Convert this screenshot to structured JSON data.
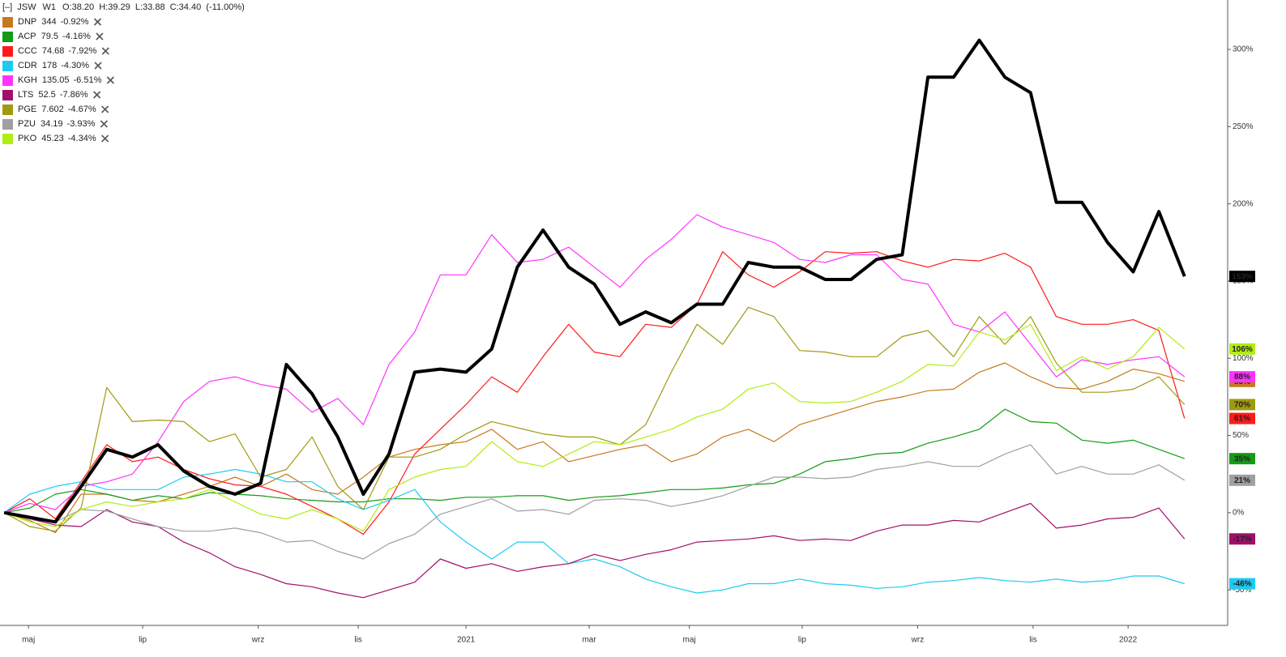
{
  "chart_data": {
    "type": "line",
    "header": {
      "toggle": "[–]",
      "interval": "W1",
      "ohlc": "O:38.20  H:39.29  L:33.88  C:34.40  (-11.00%)"
    },
    "xlim": [
      -0.16,
      47.68
    ],
    "xticks": [
      {
        "value": 0.95,
        "label": "maj"
      },
      {
        "value": 5.4,
        "label": "lip"
      },
      {
        "value": 9.9,
        "label": "wrz"
      },
      {
        "value": 13.8,
        "label": "lis"
      },
      {
        "value": 18.0,
        "label": "2021"
      },
      {
        "value": 22.8,
        "label": "mar"
      },
      {
        "value": 26.7,
        "label": "maj"
      },
      {
        "value": 31.1,
        "label": "lip"
      },
      {
        "value": 35.6,
        "label": "wrz"
      },
      {
        "value": 40.1,
        "label": "lis"
      },
      {
        "value": 43.8,
        "label": "2022"
      }
    ],
    "ylim": [
      -73,
      332
    ],
    "yticks": [
      {
        "value": -50,
        "label": "-50%"
      },
      {
        "value": 0,
        "label": "0%"
      },
      {
        "value": 50,
        "label": "50%"
      },
      {
        "value": 100,
        "label": "100%"
      },
      {
        "value": 150,
        "label": "150%"
      },
      {
        "value": 200,
        "label": "200%"
      },
      {
        "value": 250,
        "label": "250%"
      },
      {
        "value": 300,
        "label": "300%"
      }
    ],
    "grid": false,
    "series": [
      {
        "name": "JSW",
        "color": "#000000",
        "end_label": "153%",
        "values": [
          0,
          -3,
          -6,
          17,
          41,
          36,
          44,
          27,
          17,
          12,
          19,
          96,
          77,
          49,
          12,
          38,
          91,
          93,
          91,
          106,
          159,
          183,
          159,
          148,
          122,
          130,
          123,
          135,
          135,
          162,
          159,
          159,
          151,
          151,
          164,
          167,
          282,
          282,
          306,
          282,
          272,
          201,
          201,
          175,
          156,
          195,
          153
        ]
      },
      {
        "name": "DNP",
        "price": "344",
        "change": "-0.92%",
        "color": "#c8781e",
        "end_label": "85%",
        "values": [
          0,
          -5,
          -13,
          12,
          12,
          8,
          7,
          12,
          17,
          23,
          17,
          25,
          15,
          12,
          23,
          36,
          41,
          44,
          46,
          54,
          41,
          46,
          33,
          37,
          41,
          44,
          33,
          38,
          49,
          54,
          46,
          57,
          62,
          67,
          72,
          75,
          79,
          80,
          91,
          97,
          88,
          81,
          80,
          85,
          93,
          90,
          85
        ]
      },
      {
        "name": "ACP",
        "price": "79.5",
        "change": "-4.16%",
        "color": "#139c13",
        "end_label": "35%",
        "values": [
          0,
          3,
          12,
          15,
          12,
          8,
          11,
          9,
          13,
          12,
          11,
          9,
          8,
          7,
          7,
          9,
          9,
          8,
          10,
          10,
          11,
          11,
          8,
          10,
          11,
          13,
          15,
          15,
          16,
          18,
          19,
          25,
          33,
          35,
          38,
          39,
          45,
          49,
          54,
          67,
          59,
          58,
          47,
          45,
          47,
          41,
          35
        ]
      },
      {
        "name": "CCC",
        "price": "74.68",
        "change": "-7.92%",
        "color": "#ff1a1a",
        "end_label": "61%",
        "values": [
          0,
          9,
          -4,
          20,
          44,
          33,
          36,
          28,
          22,
          18,
          17,
          12,
          4,
          -4,
          -14,
          7,
          38,
          54,
          70,
          88,
          78,
          101,
          122,
          104,
          101,
          122,
          120,
          135,
          169,
          154,
          146,
          156,
          169,
          168,
          169,
          163,
          159,
          164,
          163,
          168,
          159,
          127,
          122,
          122,
          125,
          118,
          61
        ]
      },
      {
        "name": "CDR",
        "price": "178",
        "change": "-4.30%",
        "color": "#1ecbf0",
        "end_label": "-46%",
        "values": [
          0,
          12,
          17,
          20,
          15,
          15,
          15,
          23,
          25,
          28,
          25,
          20,
          20,
          9,
          2,
          8,
          15,
          -6,
          -19,
          -30,
          -19,
          -19,
          -33,
          -30,
          -35,
          -43,
          -48,
          -52,
          -50,
          -46,
          -46,
          -43,
          -46,
          -47,
          -49,
          -48,
          -45,
          -44,
          -42,
          -44,
          -45,
          -43,
          -45,
          -44,
          -41,
          -41,
          -46
        ]
      },
      {
        "name": "KGH",
        "price": "135.05",
        "change": "-6.51%",
        "color": "#ff33ff",
        "end_label": "88%",
        "values": [
          0,
          6,
          2,
          17,
          20,
          25,
          46,
          72,
          85,
          88,
          83,
          80,
          65,
          74,
          57,
          96,
          117,
          154,
          154,
          180,
          162,
          164,
          172,
          159,
          146,
          164,
          177,
          193,
          185,
          180,
          175,
          164,
          162,
          167,
          167,
          151,
          148,
          122,
          117,
          130,
          109,
          88,
          99,
          96,
          99,
          101,
          88
        ]
      },
      {
        "name": "LTS",
        "price": "52.5",
        "change": "-7.86%",
        "color": "#a0106a",
        "end_label": "-17%",
        "values": [
          0,
          -4,
          -8,
          -9,
          2,
          -6,
          -9,
          -19,
          -26,
          -35,
          -40,
          -46,
          -48,
          -52,
          -55,
          -50,
          -45,
          -30,
          -36,
          -33,
          -38,
          -35,
          -33,
          -27,
          -31,
          -27,
          -24,
          -19,
          -18,
          -17,
          -15,
          -18,
          -17,
          -18,
          -12,
          -8,
          -8,
          -5,
          -6,
          0,
          6,
          -10,
          -8,
          -4,
          -3,
          3,
          -17
        ]
      },
      {
        "name": "PGE",
        "price": "7.602",
        "change": "-4.67%",
        "color": "#a09a10",
        "end_label": "70%",
        "values": [
          0,
          -9,
          -12,
          3,
          81,
          59,
          60,
          59,
          46,
          51,
          23,
          28,
          49,
          17,
          2,
          36,
          36,
          41,
          51,
          59,
          55,
          51,
          49,
          49,
          44,
          57,
          91,
          122,
          109,
          133,
          127,
          105,
          104,
          101,
          101,
          114,
          118,
          101,
          127,
          109,
          127,
          97,
          78,
          78,
          80,
          88,
          70
        ]
      },
      {
        "name": "PZU",
        "price": "34.19",
        "change": "-3.93%",
        "color": "#a0a0a0",
        "end_label": "21%",
        "values": [
          0,
          -4,
          -6,
          2,
          1,
          -4,
          -9,
          -12,
          -12,
          -10,
          -13,
          -19,
          -18,
          -25,
          -30,
          -20,
          -14,
          -1,
          4,
          9,
          1,
          2,
          -1,
          8,
          9,
          8,
          4,
          7,
          11,
          17,
          23,
          23,
          22,
          23,
          28,
          30,
          33,
          30,
          30,
          38,
          44,
          25,
          30,
          25,
          25,
          31,
          21
        ]
      },
      {
        "name": "PKO",
        "price": "45.23",
        "change": "-4.34%",
        "color": "#b0ee10",
        "end_label": "106%",
        "values": [
          0,
          -6,
          -9,
          2,
          7,
          4,
          7,
          9,
          15,
          7,
          -1,
          -4,
          2,
          -4,
          -12,
          15,
          23,
          28,
          30,
          46,
          33,
          30,
          38,
          46,
          44,
          49,
          54,
          62,
          67,
          80,
          84,
          72,
          71,
          72,
          78,
          85,
          96,
          95,
          117,
          112,
          122,
          92,
          101,
          93,
          101,
          120,
          106
        ]
      }
    ]
  }
}
